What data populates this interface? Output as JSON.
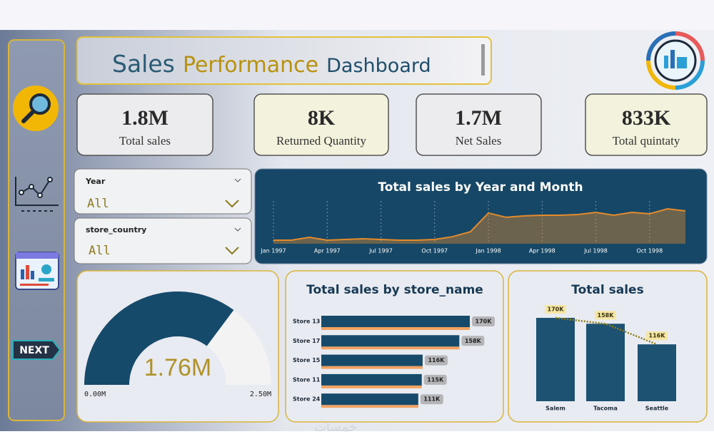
{
  "header": {
    "title_parts": [
      "Sales",
      "Performance",
      "Dashboard"
    ]
  },
  "nav": {
    "next_label": "NEXT"
  },
  "kpis": [
    {
      "value": "1.8M",
      "label": "Total sales"
    },
    {
      "value": "8K",
      "label": "Returned Quantity"
    },
    {
      "value": "1.7M",
      "label": "Net Sales"
    },
    {
      "value": "833K",
      "label": "Total quintaty"
    }
  ],
  "filters": [
    {
      "label": "Year",
      "value": "All"
    },
    {
      "label": "store_country",
      "value": "All"
    }
  ],
  "chart_data": [
    {
      "type": "area",
      "title": "Total sales by Year and Month",
      "categories": [
        "Jan 1997",
        null,
        null,
        "Apr 1997",
        null,
        null,
        "Jul 1997",
        null,
        null,
        "Oct 1997",
        null,
        null,
        "Jan 1998",
        null,
        null,
        "Apr 1998",
        null,
        null,
        "Jul 1998",
        null,
        null,
        "Oct 1998",
        null,
        null
      ],
      "values": [
        15000,
        15000,
        27000,
        15000,
        18000,
        21000,
        18000,
        15000,
        15000,
        18000,
        30000,
        51000,
        130000,
        112000,
        118000,
        121000,
        121000,
        124000,
        133000,
        121000,
        133000,
        127000,
        148000,
        139000
      ],
      "color": "#e38b2c"
    },
    {
      "type": "gauge",
      "values": [
        1760000
      ],
      "value_labels": [
        "1.76M"
      ],
      "ylim": [
        0,
        2500000
      ],
      "yticks": [
        {
          "value": 0,
          "label": "0.00M"
        },
        {
          "value": 2500000,
          "label": "2.50M"
        }
      ],
      "color": "#164a6b",
      "track_color": "#f3f3f3"
    },
    {
      "type": "hbar",
      "title": "Total sales by store_name",
      "categories": [
        "Store 13",
        "Store 17",
        "Store 15",
        "Store 11",
        "Store 24"
      ],
      "values": [
        170000,
        158000,
        116000,
        115000,
        111000
      ],
      "value_labels": [
        "170K",
        "158K",
        "116K",
        "115K",
        "111K"
      ],
      "color": "#174a6a",
      "accent_color": "#f2a262"
    },
    {
      "type": "bar",
      "title": "Total sales",
      "categories": [
        "Salem",
        "Tacoma",
        "Seattle"
      ],
      "values": [
        170000,
        158000,
        116000
      ],
      "value_labels": [
        "170K",
        "158K",
        "116K"
      ],
      "color": "#1d5273",
      "line_color": "#8f7d14"
    }
  ],
  "watermark": "خمسات"
}
